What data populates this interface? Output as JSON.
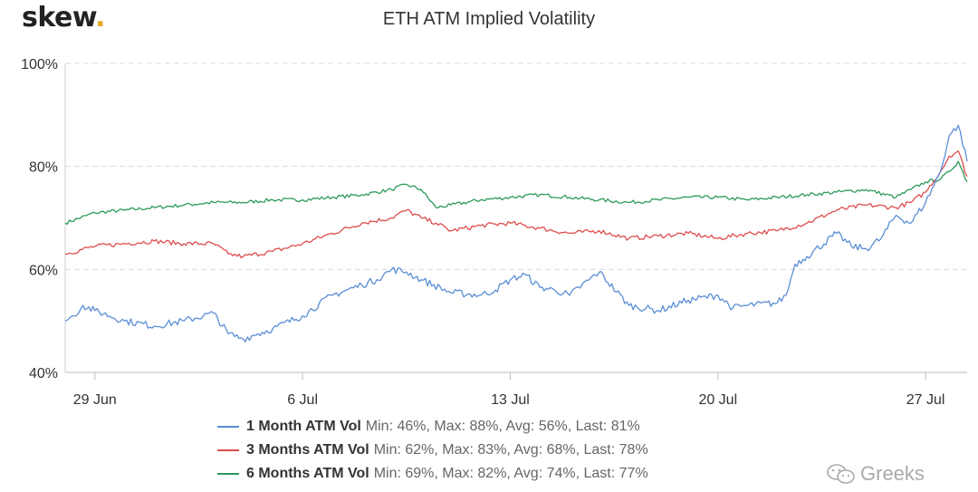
{
  "brand": {
    "name": "skew",
    "dot": "."
  },
  "watermark": {
    "icon": "wechat-icon",
    "text": "Greeks"
  },
  "colors": {
    "one_month": "#5b8ed6",
    "three_months": "#de4d4d",
    "six_months": "#2c9a5a",
    "grid": "#d9d9d9"
  },
  "chart_data": {
    "type": "line",
    "title": "ETH ATM Implied Volatility",
    "xlabel": "",
    "ylabel": "",
    "ylim": [
      40,
      100
    ],
    "yticks": [
      40,
      60,
      80,
      100
    ],
    "ytick_labels": [
      "40%",
      "60%",
      "80%",
      "100%"
    ],
    "xlim": [
      0,
      30.4
    ],
    "xticks": [
      1,
      8,
      15,
      22,
      29
    ],
    "xtick_labels": [
      "29 Jun",
      "6 Jul",
      "13 Jul",
      "20 Jul",
      "27 Jul"
    ],
    "grid": true,
    "legend_position": "bottom",
    "series": [
      {
        "name": "1 Month ATM Vol",
        "stats": "Min: 46%, Max: 88%, Avg: 56%, Last: 81%",
        "color": "#5b8ed6",
        "x": [
          0,
          0.3,
          0.6,
          1,
          2,
          3,
          4,
          5,
          5.5,
          6,
          6.5,
          7,
          8,
          9,
          10,
          10.5,
          11,
          11.5,
          12,
          13,
          14,
          14.5,
          15,
          15.5,
          16,
          16.5,
          17,
          18,
          19,
          20,
          21,
          22,
          22.5,
          23,
          24,
          24.3,
          24.6,
          25,
          26,
          26.5,
          27,
          27.5,
          28,
          28.5,
          29,
          29.5,
          29.8,
          30.1,
          30.4
        ],
        "y": [
          50,
          51,
          53,
          52,
          50,
          49,
          50,
          51.5,
          47.5,
          46.5,
          47.5,
          48.5,
          51,
          55,
          57,
          58,
          60,
          59.5,
          58,
          55.5,
          55,
          56,
          58,
          59,
          56.5,
          56,
          55,
          59.5,
          53,
          52,
          54,
          55,
          52.5,
          53,
          53.5,
          55,
          61,
          62.5,
          67,
          64.5,
          64,
          66,
          70.5,
          69,
          73,
          79,
          86,
          88,
          81
        ]
      },
      {
        "name": "3 Months ATM Vol",
        "stats": "Min: 62%, Max: 83%, Avg: 68%, Last: 78%",
        "color": "#de4d4d",
        "x": [
          0,
          1,
          2,
          3,
          4,
          5,
          5.5,
          6,
          7,
          8,
          9,
          10,
          11,
          11.5,
          12,
          12.5,
          13,
          14,
          15,
          16,
          17,
          18,
          19,
          20,
          21,
          22,
          23,
          24,
          25,
          26,
          27,
          28,
          28.5,
          29,
          29.5,
          29.8,
          30.1,
          30.4
        ],
        "y": [
          63,
          64.5,
          65,
          65.5,
          65,
          65,
          63,
          62.5,
          63.5,
          65,
          67,
          69,
          70,
          71.5,
          70,
          69,
          67.5,
          68.5,
          69,
          68,
          67,
          67.5,
          66,
          66.5,
          67,
          66,
          67,
          67.5,
          69,
          71.5,
          72.5,
          72,
          73,
          75,
          79,
          82,
          83,
          78
        ]
      },
      {
        "name": "6 Months ATM Vol",
        "stats": "Min: 69%, Max: 82%, Avg: 74%, Last: 77%",
        "color": "#2c9a5a",
        "x": [
          0,
          1,
          2,
          3,
          4,
          5,
          6,
          7,
          8,
          9,
          10,
          11,
          11.5,
          12,
          12.5,
          13,
          14,
          15,
          16,
          17,
          18,
          19,
          20,
          21,
          22,
          23,
          24,
          25,
          26,
          27,
          28,
          28.5,
          29,
          29.5,
          29.8,
          30.1,
          30.4
        ],
        "y": [
          69,
          71,
          71.5,
          72,
          72.5,
          73,
          73,
          73.5,
          73.5,
          74,
          74.5,
          75.5,
          76.5,
          75.5,
          72,
          72.5,
          73.5,
          74,
          74.5,
          74,
          73.5,
          73,
          73.5,
          74,
          74,
          73.5,
          74,
          74.5,
          75,
          75.5,
          74,
          75.5,
          77,
          77.5,
          79,
          81,
          77
        ]
      }
    ]
  }
}
